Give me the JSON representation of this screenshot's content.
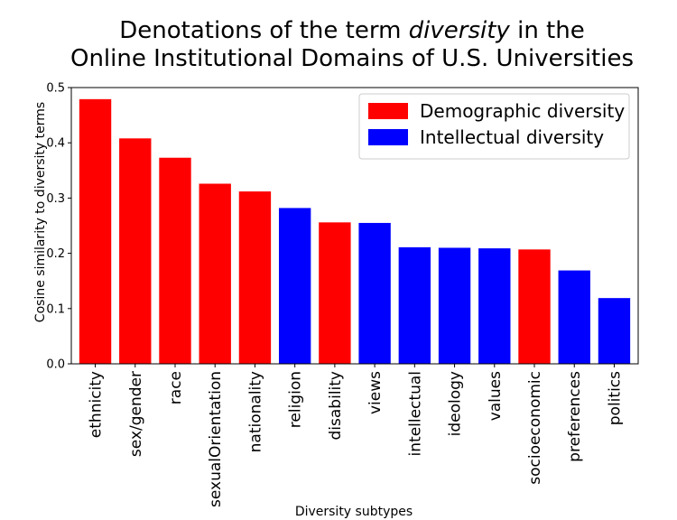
{
  "chart_data": {
    "type": "bar",
    "title": {
      "line1_pre": "Denotations of the term ",
      "line1_em": "diversity",
      "line1_post": " in the",
      "line2": "Online Institutional Domains of U.S. Universities"
    },
    "xlabel": "Diversity subtypes",
    "ylabel": "Cosine similarity to diversity terms",
    "ylim": [
      0,
      0.5
    ],
    "yticks": [
      "0.0",
      "0.1",
      "0.2",
      "0.3",
      "0.4",
      "0.5"
    ],
    "categories": [
      "ethnicity",
      "sex/gender",
      "race",
      "sexualOrientation",
      "nationality",
      "religion",
      "disability",
      "views",
      "intellectual",
      "ideology",
      "values",
      "socioeconomic",
      "preferences",
      "politics"
    ],
    "values": [
      0.479,
      0.408,
      0.373,
      0.326,
      0.312,
      0.282,
      0.256,
      0.255,
      0.211,
      0.21,
      0.209,
      0.207,
      0.169,
      0.119
    ],
    "groups": [
      "Demographic diversity",
      "Demographic diversity",
      "Demographic diversity",
      "Demographic diversity",
      "Demographic diversity",
      "Intellectual diversity",
      "Demographic diversity",
      "Intellectual diversity",
      "Intellectual diversity",
      "Intellectual diversity",
      "Intellectual diversity",
      "Demographic diversity",
      "Intellectual diversity",
      "Intellectual diversity"
    ],
    "legend": {
      "position": "top-right",
      "entries": [
        {
          "name": "Demographic diversity",
          "color": "#ff0000"
        },
        {
          "name": "Intellectual diversity",
          "color": "#0000ff"
        }
      ]
    },
    "grid": false
  }
}
